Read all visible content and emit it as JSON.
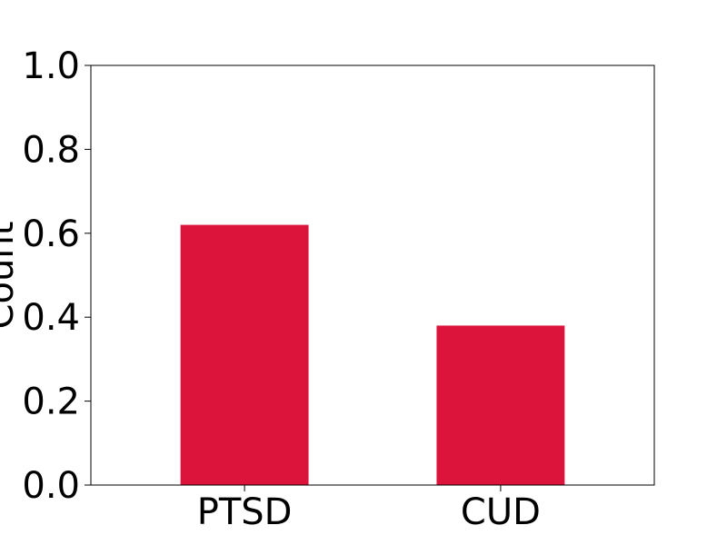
{
  "chart_data": {
    "type": "bar",
    "categories": [
      "PTSD",
      "CUD"
    ],
    "values": [
      0.62,
      0.38
    ],
    "title": "",
    "xlabel": "",
    "ylabel": "Count",
    "ylim": [
      0,
      1.0
    ],
    "yticks": [
      "0.0",
      "0.2",
      "0.4",
      "0.6",
      "0.8",
      "1.0"
    ],
    "bar_color": "#dc143c",
    "grid": false,
    "legend": "none"
  }
}
